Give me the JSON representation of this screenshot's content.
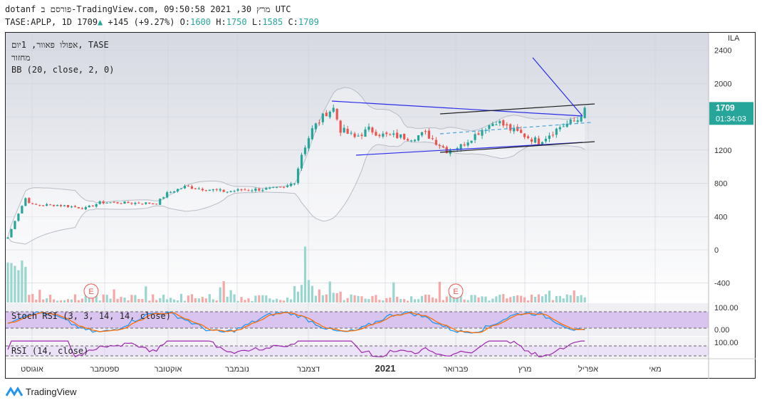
{
  "header": {
    "line1": "dotanf פורסם ב-TradingView.com, מרץ 30, 2021 09:50:58 UTC",
    "symbol": "TASE:APLP, 1D 1709",
    "change": "+145 (+9.27%)",
    "o_label": "O:",
    "o": "1600",
    "h_label": "H:",
    "h": "1750",
    "l_label": "L:",
    "l": "1585",
    "c_label": "C:",
    "c": "1709"
  },
  "legend": {
    "title": "אפולו פאוור, 1יום, TASE",
    "volume": "מחזור",
    "bb": "BB (20, close, 2, 0)",
    "stoch": "Stoch RSI (3, 3, 14, 14, close)",
    "rsi": "RSI (14, close)"
  },
  "price_badge": {
    "price": "1709",
    "countdown": "01:34:03"
  },
  "currency": "ILA",
  "footer": {
    "brand": "TradingView"
  },
  "colors": {
    "up": "#26a69a",
    "down": "#ef5350",
    "trend_blue": "#2a2ee8",
    "stoch_k": "#2196f3",
    "stoch_d": "#ff6d00",
    "rsi": "#9c27b0"
  },
  "chart_data": {
    "type": "candlestick",
    "price_axis": {
      "ticks": [
        "2400",
        "2000",
        "1600",
        "1200",
        "800",
        "400",
        "0",
        "-400"
      ],
      "ylim": [
        -500,
        2600
      ]
    },
    "stoch_axis": {
      "ticks": [
        "100.00",
        "0.00"
      ]
    },
    "rsi_axis": {
      "ticks": [
        "100.00"
      ]
    },
    "x_labels": [
      "אוגוסט",
      "ספטמבר",
      "אוקטובר",
      "נובמבר",
      "דצמבר",
      "2021",
      "פברואר",
      "מרץ",
      "אפריל",
      "מאי"
    ],
    "earnings_markers": [
      "E",
      "E"
    ],
    "close_keypoints": [
      [
        0,
        150
      ],
      [
        2,
        350
      ],
      [
        5,
        620
      ],
      [
        7,
        540
      ],
      [
        14,
        540
      ],
      [
        22,
        500
      ],
      [
        26,
        570
      ],
      [
        42,
        560
      ],
      [
        45,
        680
      ],
      [
        50,
        760
      ],
      [
        58,
        720
      ],
      [
        62,
        700
      ],
      [
        66,
        720
      ],
      [
        78,
        740
      ],
      [
        81,
        820
      ],
      [
        83,
        1150
      ],
      [
        86,
        1450
      ],
      [
        90,
        1650
      ],
      [
        92,
        1700
      ],
      [
        94,
        1450
      ],
      [
        98,
        1350
      ],
      [
        102,
        1450
      ],
      [
        106,
        1380
      ],
      [
        114,
        1350
      ],
      [
        118,
        1400
      ],
      [
        124,
        1200
      ],
      [
        128,
        1250
      ],
      [
        134,
        1450
      ],
      [
        138,
        1550
      ],
      [
        142,
        1450
      ],
      [
        150,
        1300
      ],
      [
        156,
        1480
      ],
      [
        161,
        1564
      ],
      [
        163,
        1709
      ]
    ],
    "last": {
      "open": 1600,
      "high": 1750,
      "low": 1585,
      "close": 1709
    }
  }
}
